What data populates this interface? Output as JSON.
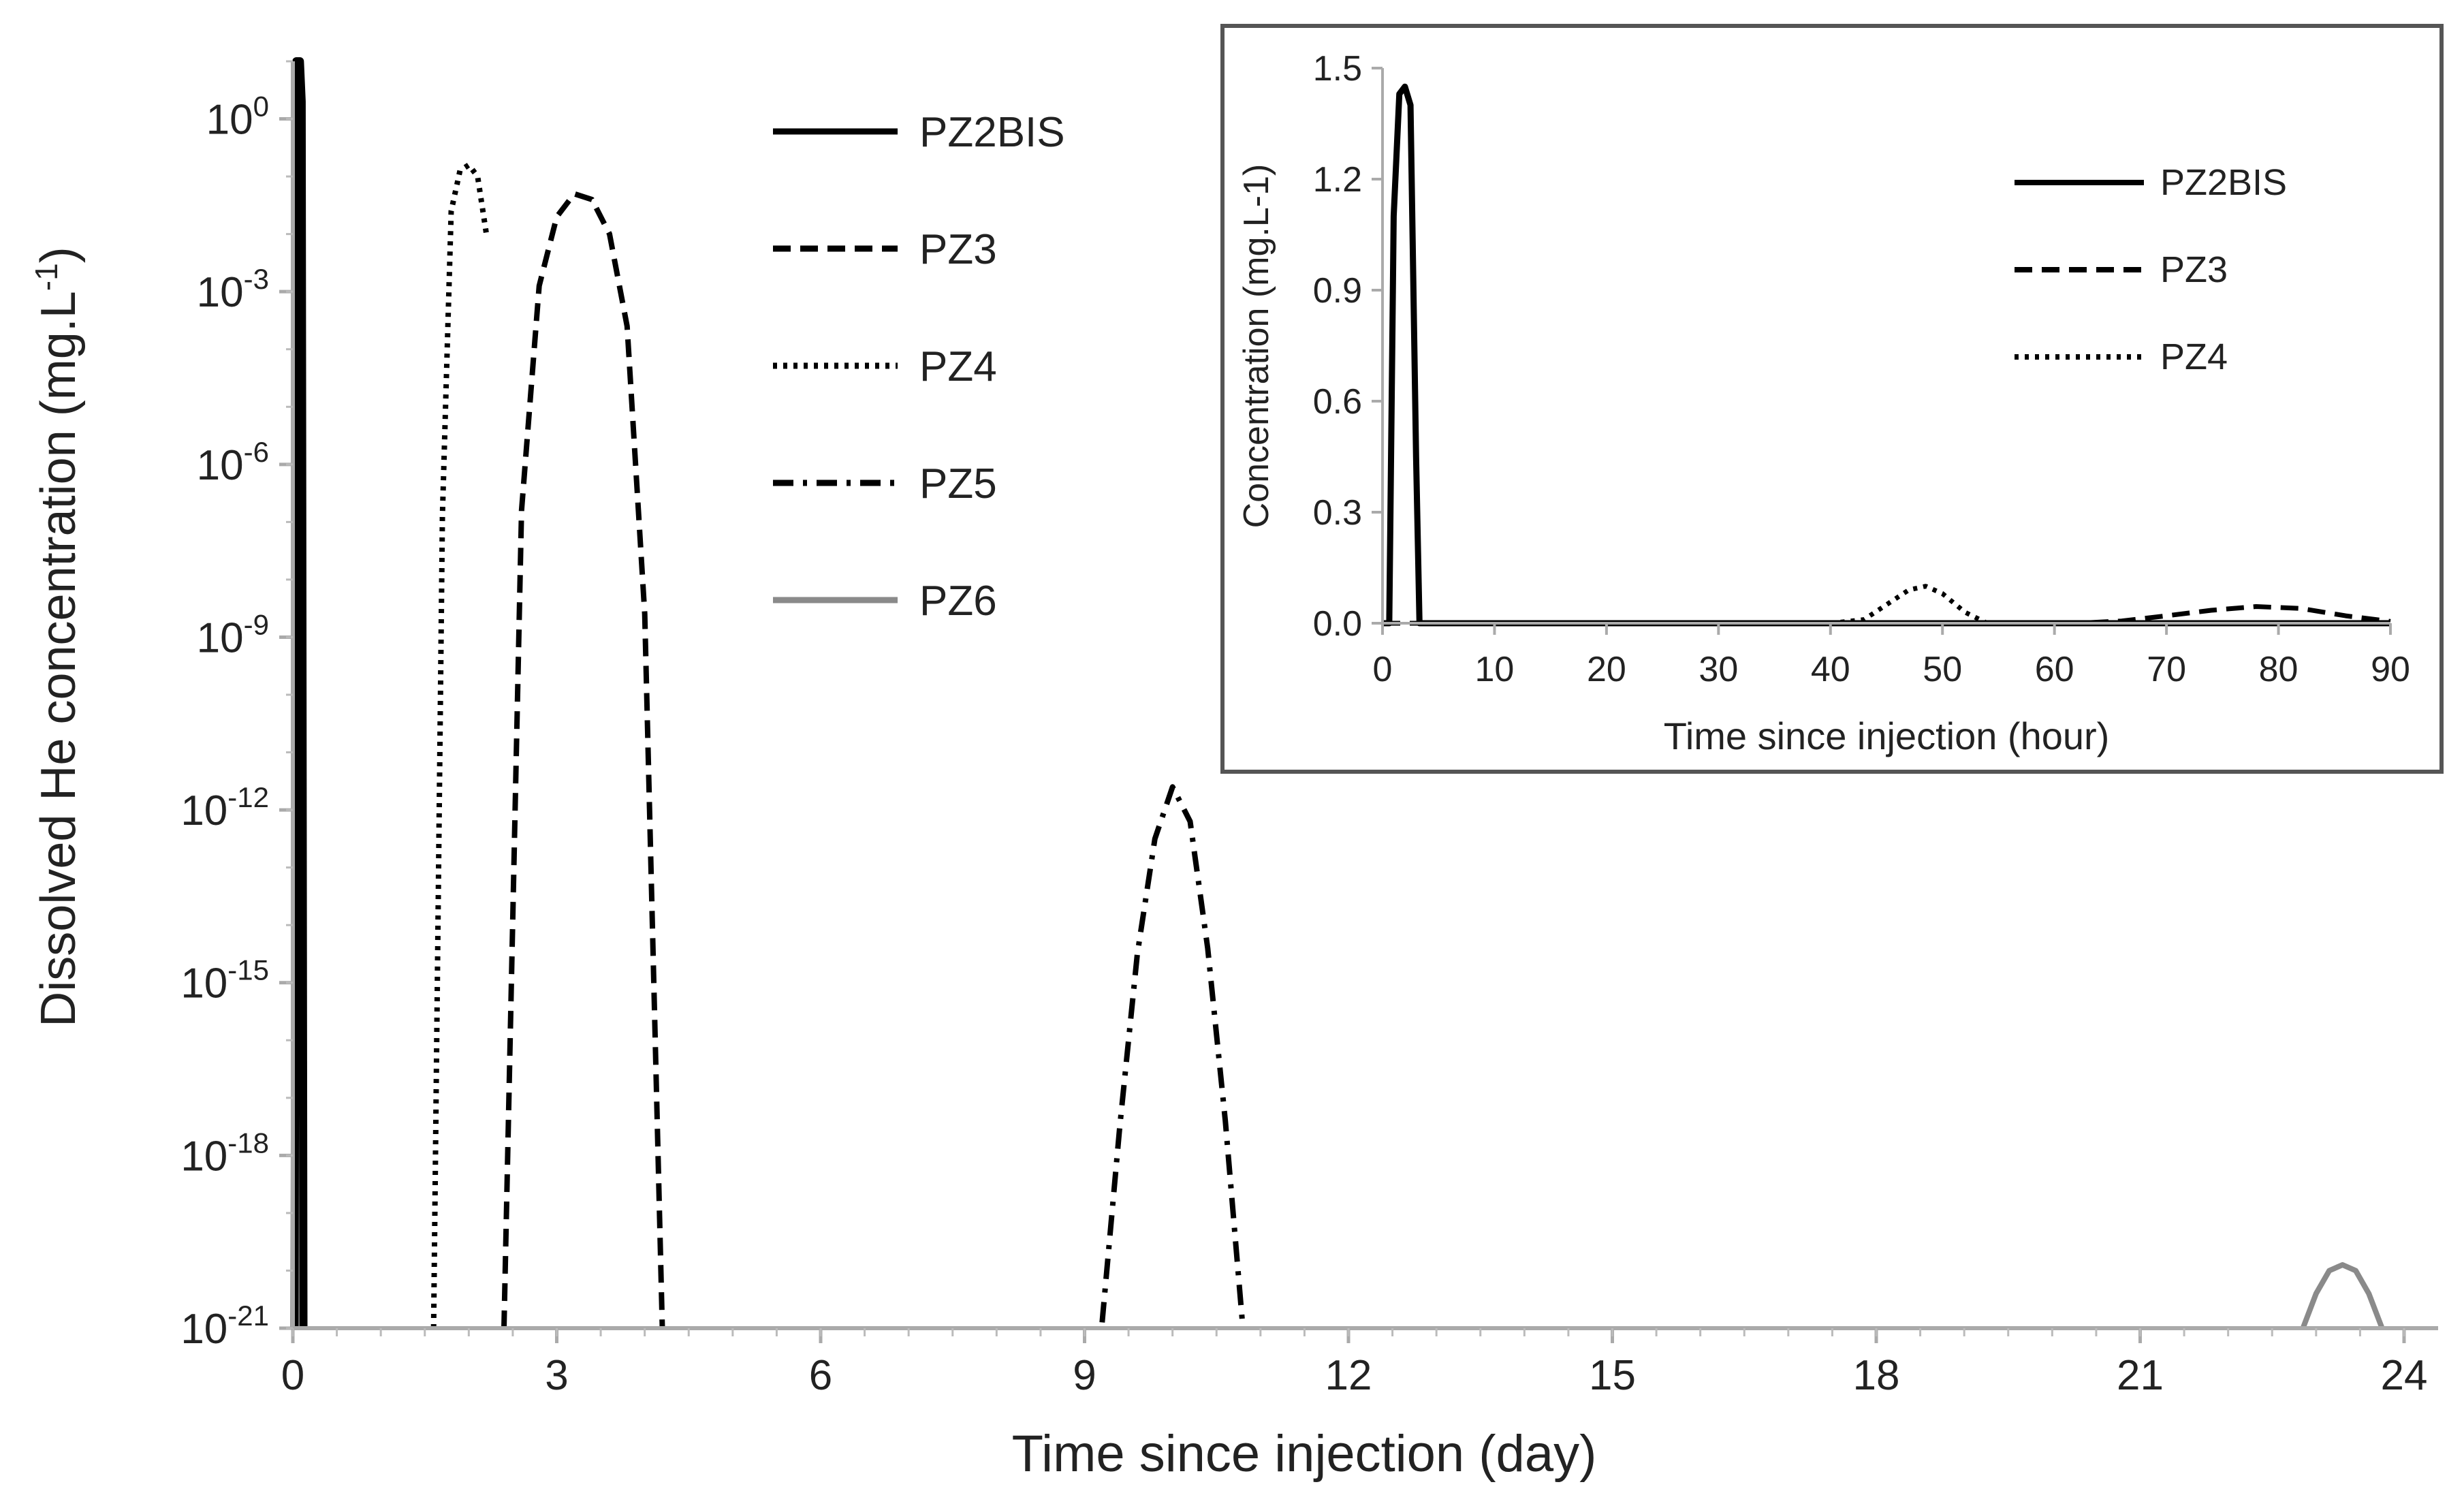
{
  "chart_data": [
    {
      "type": "line",
      "yscale": "log",
      "xlabel": "Time since injection (day)",
      "ylabel_main": "Dissolved He concentration (mg.L",
      "ylabel_sup": "-1",
      "ylabel_close": ")",
      "xlim": [
        0,
        24
      ],
      "ylim_exponent": [
        -21,
        1
      ],
      "x_ticks": [
        "0",
        "3",
        "6",
        "9",
        "12",
        "15",
        "18",
        "21",
        "24"
      ],
      "y_ticks": [
        {
          "base": "10",
          "exp": "0",
          "log10": 0
        },
        {
          "base": "10",
          "exp": "-3",
          "log10": -3
        },
        {
          "base": "10",
          "exp": "-6",
          "log10": -6
        },
        {
          "base": "10",
          "exp": "-9",
          "log10": -9
        },
        {
          "base": "10",
          "exp": "-12",
          "log10": -12
        },
        {
          "base": "10",
          "exp": "-15",
          "log10": -15
        },
        {
          "base": "10",
          "exp": "-18",
          "log10": -18
        },
        {
          "base": "10",
          "exp": "-21",
          "log10": -21
        }
      ],
      "legend": [
        "PZ2BIS",
        "PZ3",
        "PZ4",
        "PZ5",
        "PZ6"
      ],
      "series": [
        {
          "name": "PZ2BIS",
          "style": "solid",
          "color": "#000000",
          "x": [
            0.02,
            0.04,
            0.06,
            0.08,
            0.1,
            0.12
          ],
          "log10_y": [
            -21,
            1,
            1,
            1,
            0.3,
            -21
          ]
        },
        {
          "name": "PZ3",
          "style": "dashed",
          "color": "#000000",
          "x": [
            2.4,
            2.6,
            2.8,
            3.0,
            3.2,
            3.4,
            3.6,
            3.8,
            4.0,
            4.2
          ],
          "log10_y": [
            -21,
            -6.8,
            -2.9,
            -1.7,
            -1.3,
            -1.4,
            -2.0,
            -3.6,
            -8.6,
            -21
          ]
        },
        {
          "name": "PZ4",
          "style": "dotted",
          "color": "#000000",
          "x": [
            1.6,
            1.7,
            1.8,
            1.9,
            2.0,
            2.1,
            2.2
          ],
          "log10_y": [
            -21,
            -6.9,
            -1.6,
            -0.9,
            -0.8,
            -1.0,
            -2.0
          ]
        },
        {
          "name": "PZ5",
          "style": "dashdot",
          "color": "#000000",
          "x": [
            9.2,
            9.4,
            9.6,
            9.8,
            10.0,
            10.2,
            10.4,
            10.6,
            10.8
          ],
          "log10_y": [
            -20.9,
            -17.5,
            -14.5,
            -12.5,
            -11.6,
            -12.2,
            -14.4,
            -17.4,
            -21
          ]
        },
        {
          "name": "PZ6",
          "style": "solid",
          "color": "#8a8a8a",
          "x": [
            22.85,
            23.0,
            23.15,
            23.3,
            23.45,
            23.6,
            23.75
          ],
          "log10_y": [
            -21,
            -20.4,
            -20.0,
            -19.9,
            -20.0,
            -20.4,
            -21
          ]
        }
      ]
    },
    {
      "type": "line",
      "xlabel": "Time since injection (hour)",
      "ylabel": "Concentration (mg.L-1)",
      "xlim": [
        0,
        90
      ],
      "ylim": [
        0,
        1.5
      ],
      "x_ticks": [
        "0",
        "10",
        "20",
        "30",
        "40",
        "50",
        "60",
        "70",
        "80",
        "90"
      ],
      "y_ticks": [
        "0.0",
        "0.3",
        "0.6",
        "0.9",
        "1.2",
        "1.5"
      ],
      "legend": [
        "PZ2BIS",
        "PZ3",
        "PZ4"
      ],
      "series": [
        {
          "name": "PZ2BIS",
          "style": "solid",
          "color": "#000000",
          "x": [
            0,
            0.6,
            1.0,
            1.5,
            2.0,
            2.5,
            3.0,
            3.3,
            90
          ],
          "y": [
            0,
            0,
            1.1,
            1.43,
            1.45,
            1.4,
            0.45,
            0,
            0
          ]
        },
        {
          "name": "PZ3",
          "style": "dashed",
          "color": "#000000",
          "x": [
            0,
            62,
            66,
            70,
            74,
            78,
            82,
            86,
            90
          ],
          "y": [
            0,
            0,
            0.006,
            0.02,
            0.035,
            0.045,
            0.04,
            0.02,
            0.005
          ]
        },
        {
          "name": "PZ4",
          "style": "dotted",
          "color": "#000000",
          "x": [
            40,
            43,
            45,
            47,
            48.5,
            50,
            52,
            54,
            90
          ],
          "y": [
            0,
            0.01,
            0.05,
            0.09,
            0.1,
            0.08,
            0.03,
            0,
            0
          ]
        }
      ]
    }
  ]
}
